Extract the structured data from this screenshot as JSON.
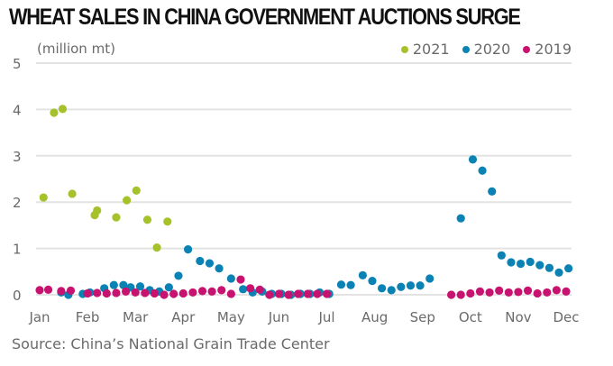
{
  "chart_data": {
    "type": "scatter",
    "title": "WHEAT SALES IN CHINA GOVERNMENT AUCTIONS SURGE",
    "ylabel": "(million mt)",
    "xlabel": "",
    "source": "Source: China’s National Grain Trade Center",
    "ylim": [
      0,
      5
    ],
    "yticks": [
      "0",
      "1",
      "2",
      "3",
      "4",
      "5"
    ],
    "xticks": [
      "Jan",
      "Feb",
      "Mar",
      "Apr",
      "May",
      "Jun",
      "Jul",
      "Aug",
      "Sep",
      "Oct",
      "Nov",
      "Dec"
    ],
    "x_units": "month index (0 = Jan, 11 = Dec)",
    "grid": true,
    "legend_position": "top-right",
    "series": [
      {
        "name": "2021",
        "color": "#a6c22b",
        "points": [
          [
            0.08,
            2.1
          ],
          [
            0.3,
            3.93
          ],
          [
            0.48,
            4.01
          ],
          [
            0.68,
            2.18
          ],
          [
            1.15,
            1.72
          ],
          [
            1.2,
            1.82
          ],
          [
            1.6,
            1.67
          ],
          [
            1.82,
            2.04
          ],
          [
            2.02,
            2.25
          ],
          [
            2.25,
            1.62
          ],
          [
            2.45,
            1.02
          ],
          [
            2.67,
            1.58
          ]
        ]
      },
      {
        "name": "2020",
        "color": "#0a82b4",
        "points": [
          [
            0.45,
            0.05
          ],
          [
            0.6,
            0.0
          ],
          [
            0.9,
            0.02
          ],
          [
            1.05,
            0.05
          ],
          [
            1.35,
            0.14
          ],
          [
            1.55,
            0.21
          ],
          [
            1.75,
            0.21
          ],
          [
            1.9,
            0.16
          ],
          [
            2.1,
            0.18
          ],
          [
            2.3,
            0.1
          ],
          [
            2.5,
            0.07
          ],
          [
            2.7,
            0.16
          ],
          [
            2.9,
            0.41
          ],
          [
            3.1,
            0.98
          ],
          [
            3.35,
            0.73
          ],
          [
            3.55,
            0.68
          ],
          [
            3.75,
            0.57
          ],
          [
            4.0,
            0.35
          ],
          [
            4.25,
            0.12
          ],
          [
            4.45,
            0.05
          ],
          [
            4.65,
            0.07
          ],
          [
            4.85,
            0.02
          ],
          [
            5.05,
            0.02
          ],
          [
            5.25,
            0.0
          ],
          [
            5.45,
            0.02
          ],
          [
            5.65,
            0.02
          ],
          [
            5.85,
            0.05
          ],
          [
            6.05,
            0.02
          ],
          [
            6.3,
            0.22
          ],
          [
            6.5,
            0.21
          ],
          [
            6.75,
            0.42
          ],
          [
            6.95,
            0.3
          ],
          [
            7.15,
            0.14
          ],
          [
            7.35,
            0.1
          ],
          [
            7.55,
            0.17
          ],
          [
            7.75,
            0.2
          ],
          [
            7.95,
            0.2
          ],
          [
            8.15,
            0.35
          ],
          [
            8.8,
            1.65
          ],
          [
            9.05,
            2.92
          ],
          [
            9.25,
            2.68
          ],
          [
            9.45,
            2.23
          ],
          [
            9.65,
            0.85
          ],
          [
            9.85,
            0.7
          ],
          [
            10.05,
            0.67
          ],
          [
            10.25,
            0.71
          ],
          [
            10.45,
            0.64
          ],
          [
            10.65,
            0.58
          ],
          [
            10.85,
            0.48
          ],
          [
            11.05,
            0.57
          ]
        ]
      },
      {
        "name": "2019",
        "color": "#c8126f",
        "points": [
          [
            0.0,
            0.1
          ],
          [
            0.18,
            0.11
          ],
          [
            0.45,
            0.08
          ],
          [
            0.65,
            0.09
          ],
          [
            1.0,
            0.03
          ],
          [
            1.2,
            0.04
          ],
          [
            1.4,
            0.03
          ],
          [
            1.6,
            0.04
          ],
          [
            1.8,
            0.07
          ],
          [
            2.0,
            0.05
          ],
          [
            2.2,
            0.04
          ],
          [
            2.4,
            0.03
          ],
          [
            2.6,
            0.0
          ],
          [
            2.8,
            0.02
          ],
          [
            3.0,
            0.03
          ],
          [
            3.2,
            0.05
          ],
          [
            3.4,
            0.08
          ],
          [
            3.6,
            0.07
          ],
          [
            3.8,
            0.1
          ],
          [
            4.0,
            0.02
          ],
          [
            4.2,
            0.33
          ],
          [
            4.4,
            0.14
          ],
          [
            4.6,
            0.11
          ],
          [
            4.8,
            0.0
          ],
          [
            5.0,
            0.02
          ],
          [
            5.2,
            0.0
          ],
          [
            5.4,
            0.02
          ],
          [
            5.6,
            0.02
          ],
          [
            5.8,
            0.02
          ],
          [
            6.0,
            0.02
          ],
          [
            8.6,
            0.0
          ],
          [
            8.8,
            0.0
          ],
          [
            9.0,
            0.03
          ],
          [
            9.2,
            0.07
          ],
          [
            9.4,
            0.05
          ],
          [
            9.6,
            0.09
          ],
          [
            9.8,
            0.05
          ],
          [
            10.0,
            0.06
          ],
          [
            10.2,
            0.09
          ],
          [
            10.4,
            0.03
          ],
          [
            10.6,
            0.05
          ],
          [
            10.8,
            0.1
          ],
          [
            11.0,
            0.07
          ]
        ]
      }
    ]
  }
}
